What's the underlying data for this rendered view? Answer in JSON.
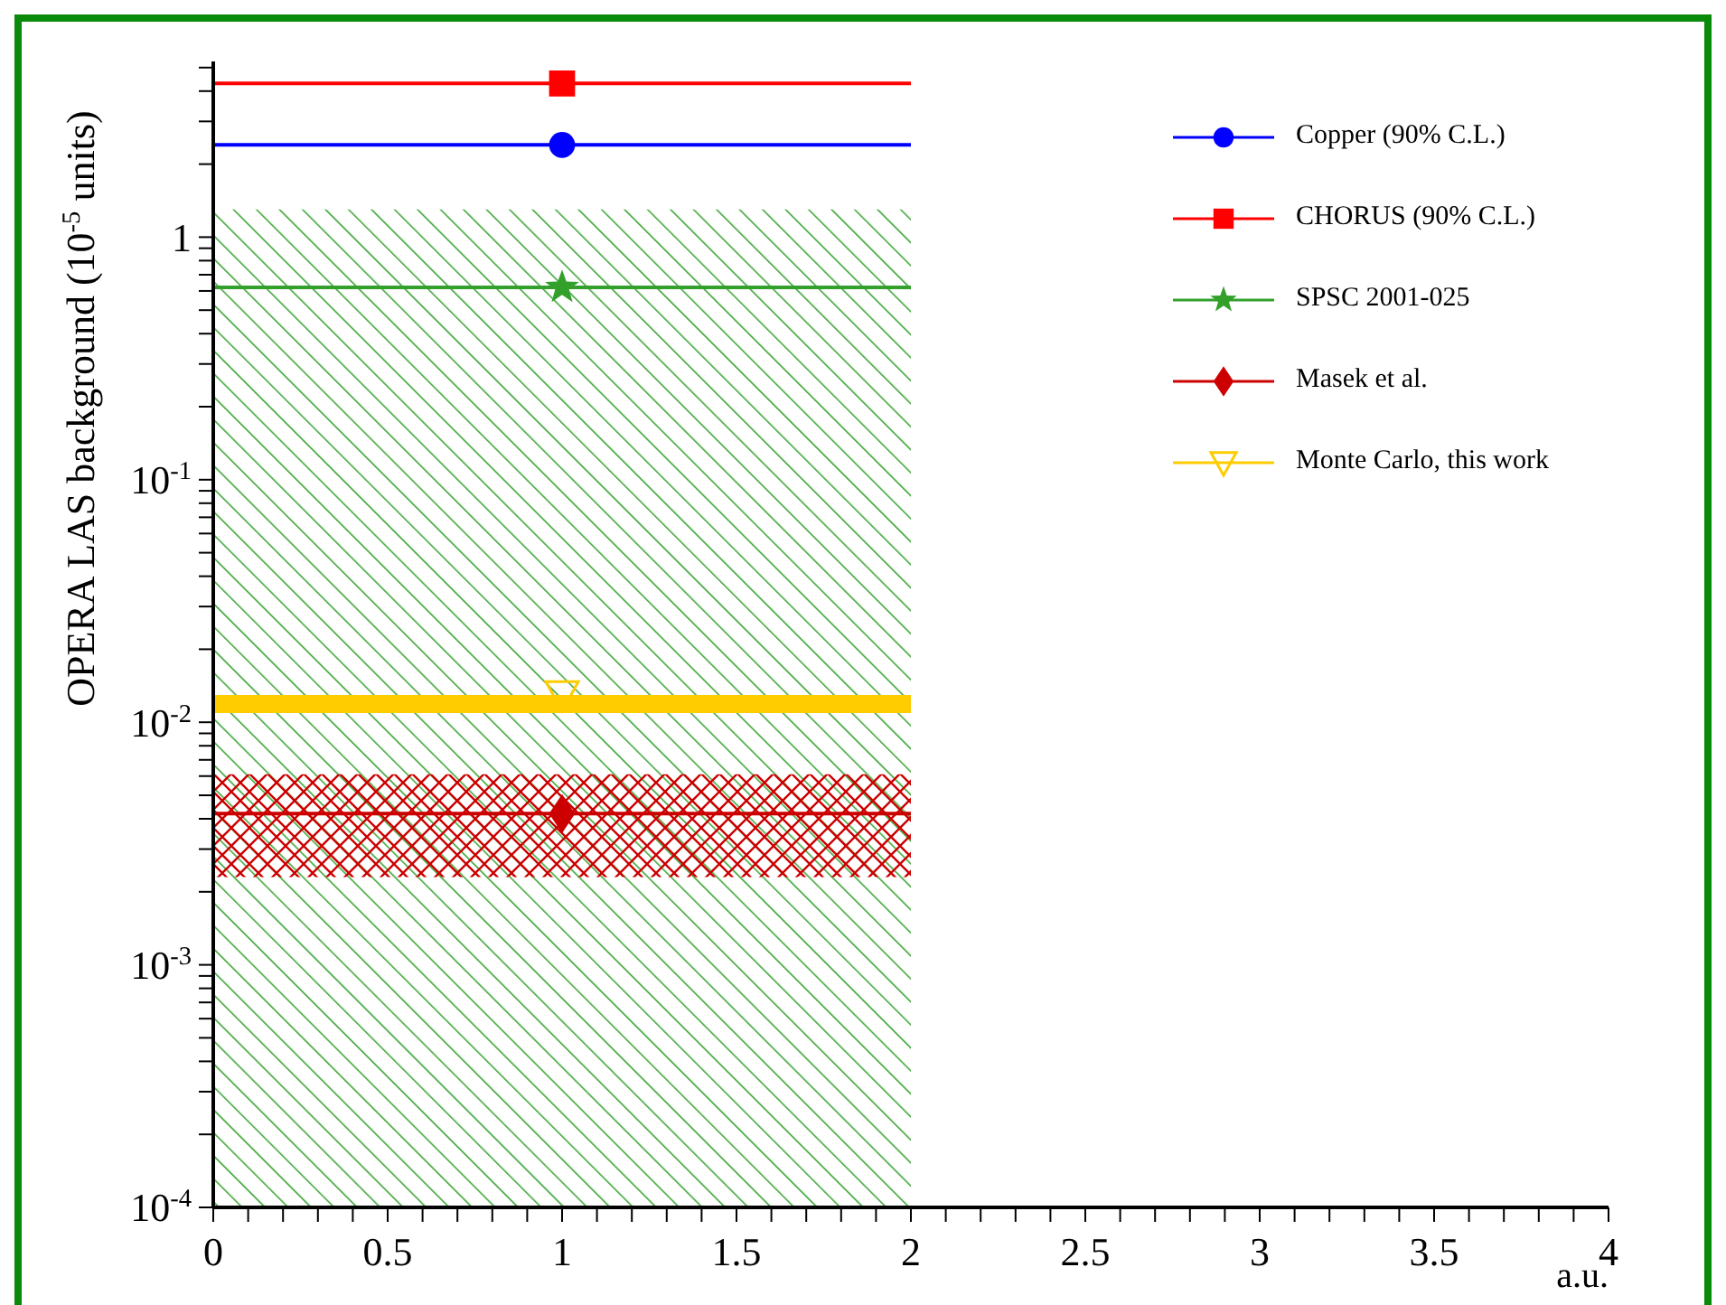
{
  "chart_data": {
    "type": "line",
    "xlabel": "a.u.",
    "ylabel": "OPERA LAS background (10$^{-5}$ units)",
    "log": "y",
    "legend": "top right",
    "grid": false,
    "xlim": [
      0,
      4
    ],
    "xticks": [
      0,
      {
        "value": 0.1,
        "label": null
      },
      {
        "value": 0.2,
        "label": null
      },
      {
        "value": 0.3,
        "label": null
      },
      {
        "value": 0.4,
        "label": null
      },
      0.5,
      {
        "value": 0.6,
        "label": null
      },
      {
        "value": 0.7,
        "label": null
      },
      {
        "value": 0.8,
        "label": null
      },
      {
        "value": 0.9,
        "label": null
      },
      1,
      {
        "value": 1.1,
        "label": null
      },
      {
        "value": 1.2,
        "label": null
      },
      {
        "value": 1.3,
        "label": null
      },
      {
        "value": 1.4,
        "label": null
      },
      1.5,
      {
        "value": 1.6,
        "label": null
      },
      {
        "value": 1.7,
        "label": null
      },
      {
        "value": 1.8,
        "label": null
      },
      {
        "value": 1.9,
        "label": null
      },
      2,
      {
        "value": 2.1,
        "label": null
      },
      {
        "value": 2.2,
        "label": null
      },
      {
        "value": 2.3,
        "label": null
      },
      {
        "value": 2.4,
        "label": null
      },
      2.5,
      {
        "value": 2.6,
        "label": null
      },
      {
        "value": 2.7,
        "label": null
      },
      {
        "value": 2.8,
        "label": null
      },
      {
        "value": 2.9,
        "label": null
      },
      3,
      {
        "value": 3.1,
        "label": null
      },
      {
        "value": 3.2,
        "label": null
      },
      {
        "value": 3.3,
        "label": null
      },
      {
        "value": 3.4,
        "label": null
      },
      3.5,
      {
        "value": 3.6,
        "label": null
      },
      {
        "value": 3.7,
        "label": null
      },
      {
        "value": 3.8,
        "label": null
      },
      {
        "value": 3.9,
        "label": null
      },
      4
    ],
    "ylim": [
      0.0001,
      5.3
    ],
    "yticks": [
      {
        "value": 0.0001,
        "label": "10$^{-4}$"
      },
      {
        "value": 0.0002,
        "label": null
      },
      {
        "value": 0.0003,
        "label": null
      },
      {
        "value": 0.0004,
        "label": null
      },
      {
        "value": 0.0005,
        "label": null
      },
      {
        "value": 0.0006,
        "label": null
      },
      {
        "value": 0.0007,
        "label": null
      },
      {
        "value": 0.0008,
        "label": null
      },
      {
        "value": 0.0009,
        "label": null
      },
      {
        "value": 0.001,
        "label": "10$^{-3}$"
      },
      {
        "value": 0.002,
        "label": null
      },
      {
        "value": 0.003,
        "label": null
      },
      {
        "value": 0.004,
        "label": null
      },
      {
        "value": 0.005,
        "label": null
      },
      {
        "value": 0.006,
        "label": null
      },
      {
        "value": 0.007,
        "label": null
      },
      {
        "value": 0.008,
        "label": null
      },
      {
        "value": 0.009,
        "label": null
      },
      {
        "value": 0.01,
        "label": "10$^{-2}$"
      },
      {
        "value": 0.02,
        "label": null
      },
      {
        "value": 0.03,
        "label": null
      },
      {
        "value": 0.04,
        "label": null
      },
      {
        "value": 0.05,
        "label": null
      },
      {
        "value": 0.06,
        "label": null
      },
      {
        "value": 0.07,
        "label": null
      },
      {
        "value": 0.08,
        "label": null
      },
      {
        "value": 0.09,
        "label": null
      },
      {
        "value": 0.1,
        "label": "10$^{-1}$"
      },
      {
        "value": 0.2,
        "label": null
      },
      {
        "value": 0.3,
        "label": null
      },
      {
        "value": 0.4,
        "label": null
      },
      {
        "value": 0.5,
        "label": null
      },
      {
        "value": 0.6,
        "label": null
      },
      {
        "value": 0.7,
        "label": null
      },
      {
        "value": 0.8,
        "label": null
      },
      {
        "value": 0.9,
        "label": null
      },
      1,
      {
        "value": 2,
        "label": null
      },
      {
        "value": 3,
        "label": null
      },
      {
        "value": 4,
        "label": null
      },
      {
        "value": 5,
        "label": null
      }
    ],
    "series": [
      {
        "name": "Copper (90% C.L.)",
        "color": "#0000ff",
        "marker": "none",
        "x": [
          0,
          2
        ],
        "values": [
          2.4,
          2.4
        ]
      },
      {
        "name": "CHORUS (90% C.L.)",
        "color": "#ff0000",
        "marker": "none",
        "x": [
          0,
          2
        ],
        "values": [
          4.3,
          4.3
        ]
      },
      {
        "name": "SPSC 2001-025",
        "color": "#33a02c",
        "marker": "none",
        "x": [
          0,
          2
        ],
        "values": [
          0.62,
          0.62
        ],
        "lower": [
          0.0001,
          0.0001
        ],
        "upper": [
          1.3,
          1.3
        ]
      },
      {
        "name": "Masek et al.",
        "color": "#cc0000",
        "marker": "none",
        "x": [
          0,
          2
        ],
        "values": [
          0.0042,
          0.0042
        ],
        "lower": [
          0.0023,
          0.0023
        ],
        "upper": [
          0.0061,
          0.0061
        ]
      },
      {
        "name": "Monte Carlo, this work",
        "color": "#ffcc00",
        "marker": "none",
        "x": [
          0,
          2
        ],
        "values": [
          0.0119,
          0.0119
        ]
      },
      {
        "type": "scatter",
        "color": "#0000ff",
        "marker": "circle",
        "x": [
          1
        ],
        "values": [
          2.4
        ]
      },
      {
        "type": "scatter",
        "color": "#ff0000",
        "marker": "square",
        "x": [
          1
        ],
        "values": [
          4.3
        ]
      },
      {
        "type": "scatter",
        "color": "#33a02c",
        "marker": "star",
        "x": [
          1
        ],
        "values": [
          0.62
        ]
      },
      {
        "type": "scatter",
        "color": "#cc0000",
        "marker": "diamond",
        "x": [
          1
        ],
        "values": [
          0.0042
        ]
      },
      {
        "type": "scatter",
        "color": "#ffcc00",
        "marker": "triangle",
        "x": [
          1
        ],
        "values": [
          0.013
        ]
      }
    ]
  }
}
